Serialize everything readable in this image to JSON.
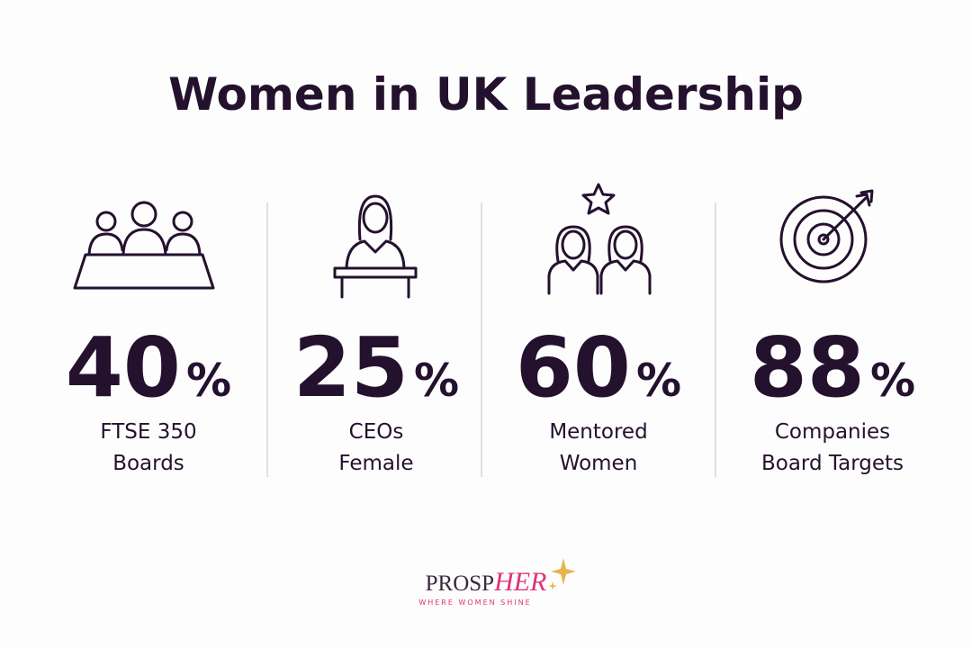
{
  "title": "Women in UK Leadership",
  "stats": [
    {
      "value": 40,
      "unit": "%",
      "label": [
        "FTSE 350",
        "Boards"
      ]
    },
    {
      "value": 25,
      "unit": "%",
      "label": [
        "CEOs",
        "Female"
      ]
    },
    {
      "value": 60,
      "unit": "%",
      "label": [
        "Mentored",
        "Women"
      ]
    },
    {
      "value": 88,
      "unit": "%",
      "label": [
        "Companies",
        "Board Targets"
      ]
    }
  ],
  "logo": {
    "name_start": "PROSP",
    "name_end": "HER",
    "tagline": "WHERE WOMEN SHINE"
  }
}
